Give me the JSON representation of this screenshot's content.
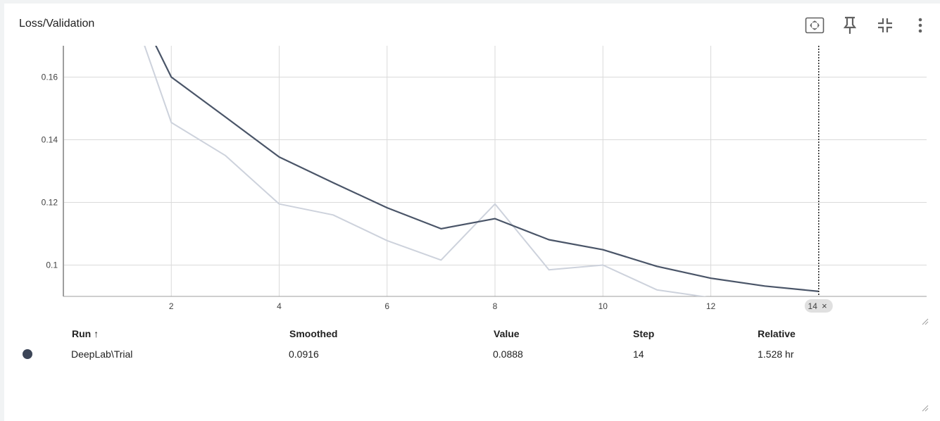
{
  "card": {
    "title": "Loss/Validation"
  },
  "toolbar": {
    "icons": [
      "fit-domain-icon",
      "pin-icon",
      "collapse-icon",
      "more-vert-icon"
    ]
  },
  "colors": {
    "smoothed": "#4a5568",
    "raw": "#cdd2dc",
    "grid": "#dadada",
    "axis": "#9e9e9e"
  },
  "chart_data": {
    "type": "line",
    "title": "Loss/Validation",
    "xlabel": "",
    "ylabel": "",
    "xlim": [
      0,
      16
    ],
    "ylim": [
      0.09,
      0.17
    ],
    "x_ticks": [
      2,
      4,
      6,
      8,
      10,
      12
    ],
    "y_ticks": [
      0.1,
      0.12,
      0.14,
      0.16
    ],
    "x_tick_labels": [
      "2",
      "4",
      "6",
      "8",
      "10",
      "12"
    ],
    "y_tick_labels": [
      "0.1",
      "0.12",
      "0.14",
      "0.16"
    ],
    "grid": true,
    "series": [
      {
        "name": "DeepLab\\Trial",
        "role": "raw",
        "x": [
          1,
          2,
          3,
          4,
          5,
          6,
          7,
          8,
          9,
          10,
          11,
          12,
          13,
          14
        ],
        "y": [
          0.195,
          0.1455,
          0.135,
          0.1195,
          0.116,
          0.1078,
          0.1016,
          0.1195,
          0.0985,
          0.1,
          0.0921,
          0.0896,
          0.0879,
          0.0888
        ]
      },
      {
        "name": "DeepLab\\Trial",
        "role": "smoothed",
        "x": [
          1,
          2,
          3,
          4,
          5,
          6,
          7,
          8,
          9,
          10,
          11,
          12,
          13,
          14
        ],
        "y": [
          0.195,
          0.16,
          0.1473,
          0.1345,
          0.1263,
          0.1183,
          0.1116,
          0.1148,
          0.1081,
          0.1049,
          0.0996,
          0.0958,
          0.0933,
          0.0916
        ]
      }
    ],
    "cursor": {
      "step": 14,
      "label": "14",
      "close_glyph": "×"
    }
  },
  "table": {
    "headers": {
      "run": "Run ↑",
      "smoothed": "Smoothed",
      "value": "Value",
      "step": "Step",
      "relative": "Relative"
    },
    "rows": [
      {
        "run": "DeepLab\\Trial",
        "smoothed": "0.0916",
        "value": "0.0888",
        "step": "14",
        "relative": "1.528 hr",
        "color": "#3c4557"
      }
    ]
  }
}
